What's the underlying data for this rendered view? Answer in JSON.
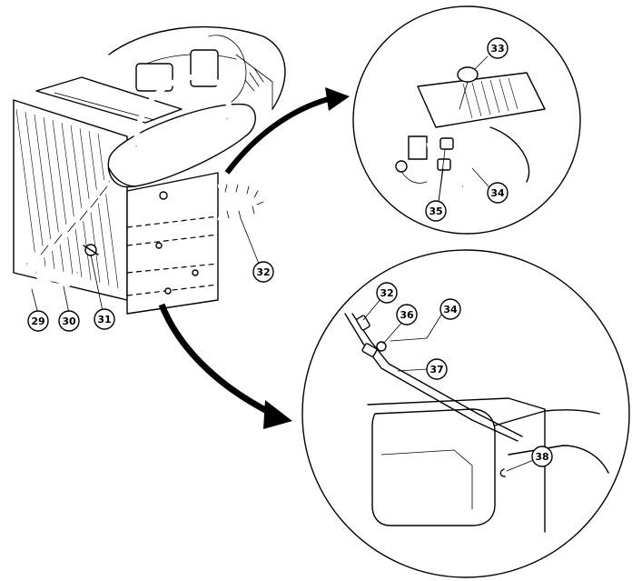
{
  "callouts": {
    "c29": "29",
    "c30": "30",
    "c31": "31",
    "c32_main": "32",
    "c33": "33",
    "c34_top": "34",
    "c35": "35",
    "c32_bottom": "32",
    "c36": "36",
    "c34_bottom": "34",
    "c37": "37",
    "c38": "38"
  },
  "icons": {
    "arrow_top": "curved-arrow-icon",
    "arrow_bottom": "curved-arrow-icon"
  }
}
